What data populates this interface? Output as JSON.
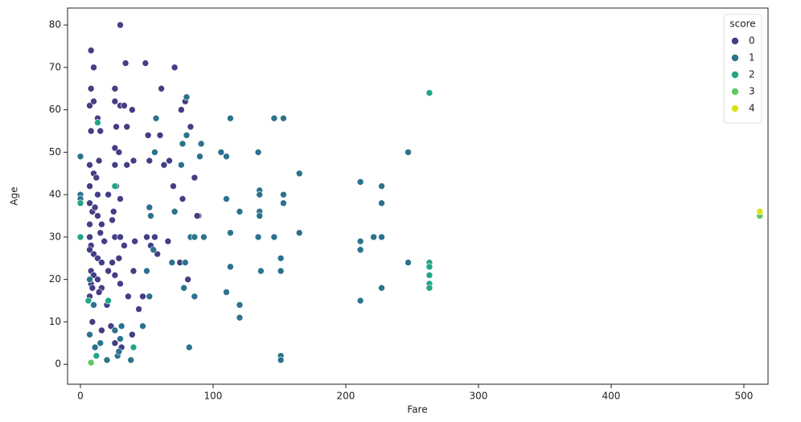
{
  "chart_data": {
    "type": "scatter",
    "x_label": "Fare",
    "y_label": "Age",
    "legend_title": "score",
    "legend": "upper right",
    "xlim": [
      -9.7,
      518.2
    ],
    "ylim": [
      -4.7,
      84.0
    ],
    "xticks": [
      0,
      100,
      200,
      300,
      400,
      500
    ],
    "yticks": [
      0,
      10,
      20,
      30,
      40,
      50,
      60,
      70,
      80
    ],
    "series": [
      {
        "name": "0",
        "color": "#433e85",
        "x": [
          30,
          8,
          34,
          49,
          71,
          10,
          8,
          26,
          61,
          7,
          10,
          26,
          30,
          33,
          13,
          27,
          35,
          39,
          76,
          79,
          83,
          8,
          15,
          51,
          60,
          52,
          67,
          86,
          26,
          29,
          7,
          10,
          14,
          26,
          35,
          40,
          7,
          13,
          21,
          27,
          30,
          7,
          9,
          13,
          16,
          24,
          26,
          30,
          7,
          8,
          10,
          13,
          16,
          21,
          24,
          8,
          8,
          9,
          10,
          13,
          16,
          26,
          30,
          50,
          53,
          56,
          66,
          75,
          81,
          89,
          7,
          7,
          15,
          18,
          29,
          33,
          14,
          20,
          7,
          23,
          26,
          31,
          16,
          9,
          39,
          44,
          47,
          11,
          12,
          25,
          41,
          36,
          70,
          77,
          63,
          88,
          58,
          40
        ],
        "y": [
          80,
          74,
          71,
          71,
          70,
          70,
          65,
          65,
          65,
          61,
          62,
          62,
          61,
          61,
          58,
          56,
          56,
          60,
          60,
          62,
          56,
          55,
          55,
          54,
          54,
          48,
          48,
          44,
          51,
          50,
          47,
          45,
          48,
          47,
          47,
          48,
          42,
          40,
          40,
          42,
          39,
          38,
          36,
          35,
          33,
          34,
          30,
          30,
          30,
          28,
          26,
          25,
          24,
          22,
          24,
          22,
          19,
          18,
          21,
          20,
          18,
          21,
          19,
          30,
          28,
          30,
          29,
          24,
          20,
          35,
          33,
          27,
          31,
          29,
          25,
          28,
          17,
          14,
          16,
          9,
          5,
          4,
          8,
          10,
          7,
          13,
          16,
          37,
          44,
          36,
          29,
          16,
          42,
          39,
          47,
          35,
          26,
          22
        ]
      },
      {
        "name": "1",
        "color": "#2c728e",
        "x": [
          247,
          211,
          227,
          227,
          211,
          221,
          227,
          211,
          247,
          227,
          211,
          165,
          153,
          153,
          165,
          153,
          146,
          113,
          135,
          135,
          134,
          135,
          135,
          134,
          146,
          151,
          151,
          136,
          113,
          113,
          110,
          120,
          110,
          106,
          120,
          120,
          110,
          151,
          151,
          82,
          80,
          80,
          77,
          76,
          90,
          91,
          83,
          71,
          79,
          57,
          56,
          52,
          55,
          52,
          47,
          30,
          31,
          28,
          38,
          7,
          0,
          0,
          0,
          15,
          11,
          20,
          26,
          29,
          7,
          10,
          53,
          69,
          86,
          93,
          86,
          78,
          50
        ],
        "y": [
          50,
          43,
          42,
          38,
          29,
          30,
          30,
          27,
          24,
          18,
          15,
          45,
          40,
          38,
          31,
          58,
          58,
          58,
          41,
          40,
          50,
          36,
          35,
          30,
          30,
          25,
          22,
          22,
          31,
          23,
          39,
          36,
          49,
          50,
          14,
          11,
          17,
          2,
          1,
          4,
          63,
          54,
          52,
          47,
          49,
          52,
          30,
          36,
          24,
          58,
          50,
          37,
          27,
          16,
          9,
          6,
          9,
          2,
          1,
          7,
          40,
          39,
          49,
          5,
          4,
          1,
          8,
          3,
          20,
          14,
          35,
          24,
          30,
          30,
          16,
          18,
          22
        ]
      },
      {
        "name": "2",
        "color": "#21a585",
        "x": [
          263,
          263,
          263,
          263,
          263,
          263,
          0,
          0,
          12,
          40,
          26,
          13,
          6,
          21
        ],
        "y": [
          64,
          24,
          23,
          21,
          19,
          18,
          38,
          30,
          2,
          4,
          42,
          57,
          15,
          15
        ]
      },
      {
        "name": "3",
        "color": "#5ec962",
        "x": [
          512,
          8
        ],
        "y": [
          35,
          0.4
        ]
      },
      {
        "name": "4",
        "color": "#d8e219",
        "x": [
          512
        ],
        "y": [
          36
        ]
      }
    ]
  }
}
